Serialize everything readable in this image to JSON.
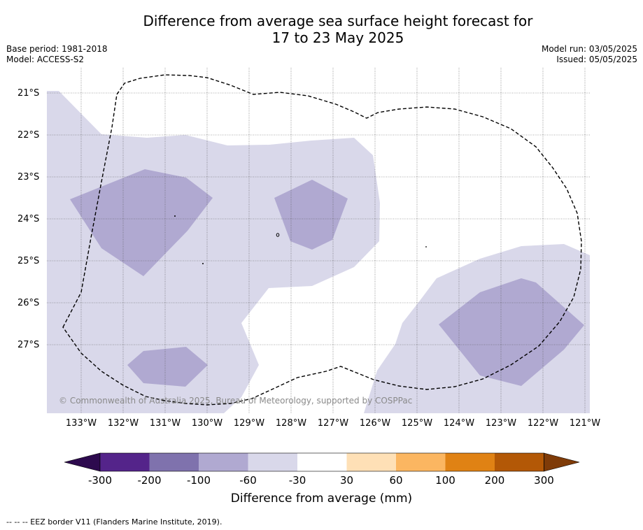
{
  "title_line1": "Difference from average sea surface height forecast for",
  "title_line2": "17 to 23 May 2025",
  "base_period": "Base period: 1981-2018",
  "model": "Model: ACCESS-S2",
  "model_run": "Model run: 03/05/2025",
  "issued": "Issued: 05/05/2025",
  "latitudes": [
    "21°S",
    "22°S",
    "23°S",
    "24°S",
    "25°S",
    "26°S",
    "27°S"
  ],
  "longitudes": [
    "133°W",
    "132°W",
    "131°W",
    "130°W",
    "129°W",
    "128°W",
    "127°W",
    "126°W",
    "125°W",
    "124°W",
    "123°W",
    "122°W",
    "121°W"
  ],
  "copyright": "© Commonwealth of Australia 2025, Bureau of Meteorology, supported by COSPPac",
  "colorbar": {
    "ticks": [
      "-300",
      "-200",
      "-100",
      "-60",
      "-30",
      "30",
      "60",
      "100",
      "200",
      "300"
    ],
    "colors": [
      "#2d0a4e",
      "#54248a",
      "#7f72ad",
      "#b0a9d1",
      "#d9d8ea",
      "#ffffff",
      "#fee0b6",
      "#fbb661",
      "#e08214",
      "#b35806",
      "#7f3b08"
    ],
    "label": "Difference from average (mm)"
  },
  "legend_note": "--  --  -- EEZ border V11 (Flanders Marine Institute, 2019)."
}
